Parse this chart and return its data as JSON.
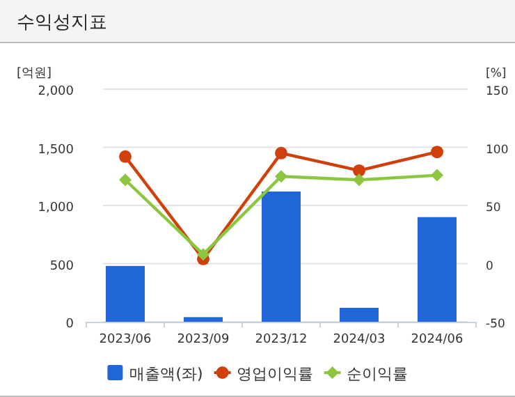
{
  "chart_data": {
    "type": "bar",
    "title": "수익성지표",
    "ylabel": "[억원]",
    "y2label": "[%]",
    "categories": [
      "2023/06",
      "2023/09",
      "2023/12",
      "2024/03",
      "2024/06"
    ],
    "series": [
      {
        "name": "매출액(좌)",
        "color": "#2166d9",
        "values": [
          480,
          40,
          1120,
          120,
          900
        ]
      },
      {
        "name": "영업이익률",
        "type": "line",
        "axis": "y2",
        "marker": "circle",
        "color": "#d0400c",
        "values": [
          92,
          4,
          95,
          80,
          96
        ]
      },
      {
        "name": "순이익률",
        "type": "line",
        "axis": "y2",
        "marker": "diamond",
        "color": "#8cc63f",
        "values": [
          72,
          8,
          75,
          72,
          76
        ]
      }
    ],
    "ylim": [
      0,
      2000
    ],
    "yticks": [
      {
        "value": 0,
        "label": "0"
      },
      {
        "value": 500,
        "label": "500"
      },
      {
        "value": 1000,
        "label": "1,000"
      },
      {
        "value": 1500,
        "label": "1,500"
      },
      {
        "value": 2000,
        "label": "2,000"
      }
    ],
    "y2lim": [
      -50,
      150
    ],
    "y2ticks": [
      -50,
      0,
      50,
      100,
      150
    ],
    "grid": "y",
    "legend": "bottom"
  }
}
